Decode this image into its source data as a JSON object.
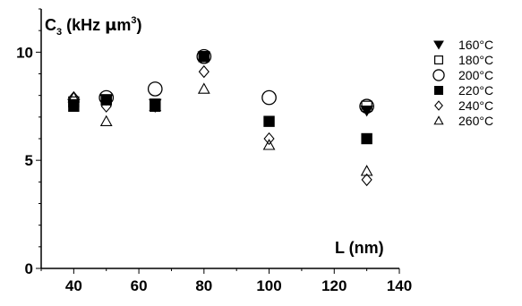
{
  "chart_data": {
    "type": "scatter",
    "title": "",
    "ylabel": {
      "base": "C",
      "sub": "3",
      "text": " (kHz ",
      "mu": "μ",
      "unit": "m",
      "sup": "3",
      "close": ")"
    },
    "xlabel": "L (nm)",
    "xlim": [
      30,
      140
    ],
    "ylim": [
      0,
      12
    ],
    "x_ticks": [
      40,
      60,
      80,
      100,
      120,
      140
    ],
    "y_ticks": [
      0,
      5,
      10
    ],
    "grid": false,
    "legend_position": "right",
    "series": [
      {
        "name": "160°C",
        "marker": "triangle-down-filled",
        "points": [
          [
            40,
            7.6
          ],
          [
            50,
            7.8
          ],
          [
            65,
            7.6
          ],
          [
            80,
            9.8
          ],
          [
            130,
            7.3
          ]
        ]
      },
      {
        "name": "180°C",
        "marker": "square-open",
        "points": [
          [
            40,
            7.7
          ],
          [
            50,
            7.8
          ],
          [
            65,
            7.6
          ],
          [
            80,
            9.8
          ],
          [
            130,
            7.5
          ]
        ]
      },
      {
        "name": "200°C",
        "marker": "circle-open",
        "points": [
          [
            50,
            7.9
          ],
          [
            65,
            8.3
          ],
          [
            80,
            9.8
          ],
          [
            100,
            7.9
          ],
          [
            130,
            7.5
          ]
        ]
      },
      {
        "name": "220°C",
        "marker": "square-filled",
        "points": [
          [
            40,
            7.5
          ],
          [
            50,
            7.8
          ],
          [
            65,
            7.5
          ],
          [
            80,
            9.8
          ],
          [
            100,
            6.8
          ],
          [
            130,
            6.0
          ]
        ]
      },
      {
        "name": "240°C",
        "marker": "diamond-open",
        "points": [
          [
            40,
            7.9
          ],
          [
            50,
            7.5
          ],
          [
            65,
            7.5
          ],
          [
            80,
            9.1
          ],
          [
            100,
            6.0
          ],
          [
            130,
            4.1
          ]
        ]
      },
      {
        "name": "260°C",
        "marker": "triangle-up-open",
        "points": [
          [
            40,
            7.9
          ],
          [
            50,
            6.8
          ],
          [
            65,
            7.5
          ],
          [
            80,
            8.3
          ],
          [
            100,
            5.7
          ],
          [
            130,
            4.5
          ]
        ]
      }
    ]
  }
}
